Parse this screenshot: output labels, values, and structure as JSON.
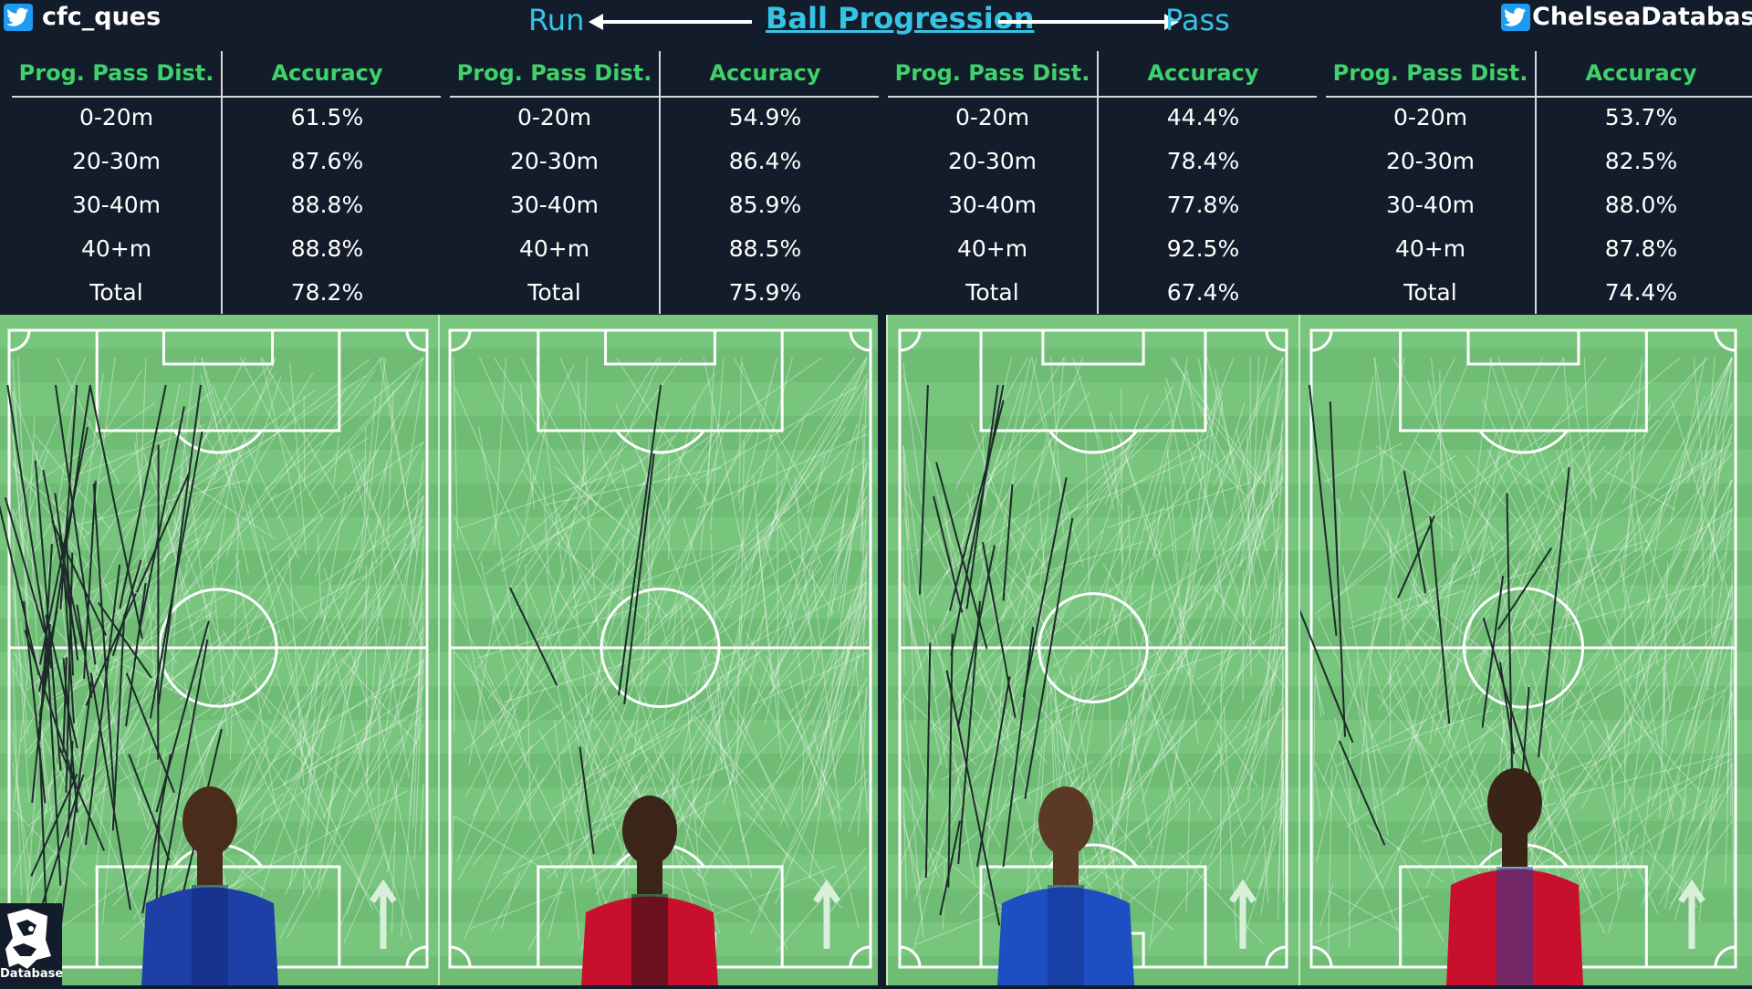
{
  "header": {
    "left_handle": "cfc_ques",
    "right_handle": "ChelseaDatabase",
    "run_label": "Run",
    "title": "Ball Progression",
    "pass_label": "Pass"
  },
  "logo_text": "Database",
  "colors": {
    "background": "#131c2a",
    "accent_cyan": "#35c3e6",
    "header_green": "#3fd16b",
    "pitch": "#74c27a",
    "twitter_blue": "#1d9bf0"
  },
  "chart_data": [
    {
      "type": "table",
      "columns": [
        "Prog. Pass Dist.",
        "Accuracy"
      ],
      "rows": [
        [
          "0-20m",
          "61.5%"
        ],
        [
          "20-30m",
          "87.6%"
        ],
        [
          "30-40m",
          "88.8%"
        ],
        [
          "40+m",
          "88.8%"
        ],
        [
          "Total",
          "78.2%"
        ]
      ]
    },
    {
      "type": "table",
      "columns": [
        "Prog. Pass Dist.",
        "Accuracy"
      ],
      "rows": [
        [
          "0-20m",
          "54.9%"
        ],
        [
          "20-30m",
          "86.4%"
        ],
        [
          "30-40m",
          "85.9%"
        ],
        [
          "40+m",
          "88.5%"
        ],
        [
          "Total",
          "75.9%"
        ]
      ]
    },
    {
      "type": "table",
      "columns": [
        "Prog. Pass Dist.",
        "Accuracy"
      ],
      "rows": [
        [
          "0-20m",
          "44.4%"
        ],
        [
          "20-30m",
          "78.4%"
        ],
        [
          "30-40m",
          "77.8%"
        ],
        [
          "40+m",
          "92.5%"
        ],
        [
          "Total",
          "67.4%"
        ]
      ]
    },
    {
      "type": "table",
      "columns": [
        "Prog. Pass Dist.",
        "Accuracy"
      ],
      "rows": [
        [
          "0-20m",
          "53.7%"
        ],
        [
          "20-30m",
          "82.5%"
        ],
        [
          "30-40m",
          "88.0%"
        ],
        [
          "40+m",
          "87.8%"
        ],
        [
          "Total",
          "74.4%"
        ]
      ]
    }
  ],
  "players": [
    {
      "shirt": "#1d3fa6",
      "accent": "#0d2777",
      "skin": "#4a2c1c"
    },
    {
      "shirt": "#c8102e",
      "accent": "#111111",
      "skin": "#3b2418"
    },
    {
      "shirt": "#1e4fc2",
      "accent": "#0f2f8a",
      "skin": "#5a3a26"
    },
    {
      "shirt": "#c8102e",
      "accent": "#1b3c9e",
      "skin": "#3a2317"
    }
  ]
}
